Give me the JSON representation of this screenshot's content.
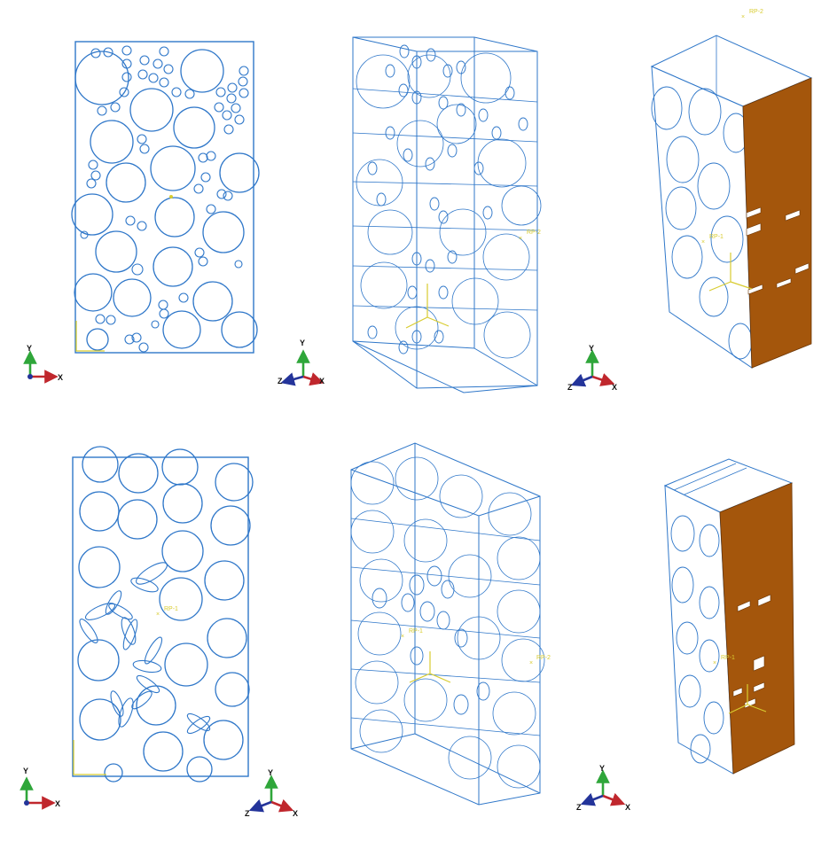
{
  "colors": {
    "wire": "#2f77c9",
    "fill_face": "#a4560c",
    "ref_yellow": "#d8cc30",
    "axis_x": "#c0272d",
    "axis_y": "#2fa63a",
    "axis_z": "#24349a"
  },
  "axis_labels": {
    "x": "X",
    "y": "Y",
    "z": "Z"
  },
  "reference_points": {
    "rp_top_row_middle": "RP-2",
    "rp_top_row_right_top": "RP-2",
    "rp_top_row_right": "RP-1",
    "rp_bottom_row_left": "RP-1",
    "rp_bottom_row_middle_left": "RP-1",
    "rp_bottom_row_middle_right": "RP-2",
    "rp_bottom_row_right": "RP-1"
  },
  "panels": [
    {
      "view": "2D front",
      "triad": "XY",
      "inclusions": "circular"
    },
    {
      "view": "3D isometric wireframe",
      "triad": "XYZ",
      "inclusions": "cylindrical"
    },
    {
      "view": "3D isometric with loaded face",
      "triad": "XYZ",
      "inclusions": "cylindrical"
    },
    {
      "view": "2D front",
      "triad": "XY",
      "inclusions": "circular and elliptical"
    },
    {
      "view": "3D isometric wireframe",
      "triad": "XYZ",
      "inclusions": "cylindrical and elliptical"
    },
    {
      "view": "3D isometric with loaded face",
      "triad": "XYZ",
      "inclusions": "cylindrical and elliptical"
    }
  ]
}
